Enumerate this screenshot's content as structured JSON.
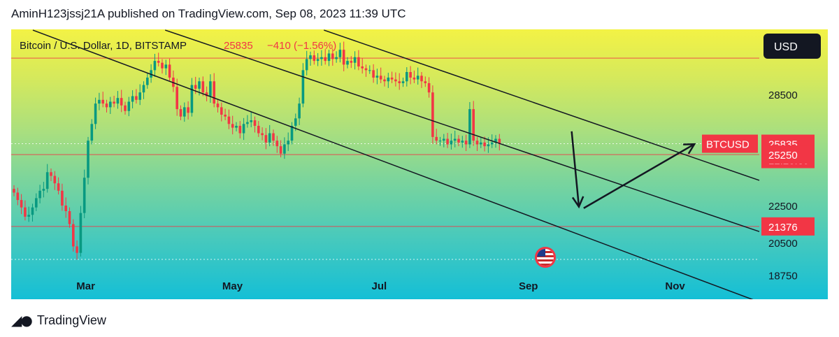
{
  "header": {
    "published": "AminH123jssj21A published on TradingView.com, Sep 08, 2023 11:39 UTC"
  },
  "legend": {
    "symbol": "Bitcoin / U.S. Dollar, 1D, BITSTAMP",
    "price": "25835",
    "change": "−410 (−1.56%)"
  },
  "currency_button": "USD",
  "footer": {
    "brand": "TradingView",
    "logo_icon": "tradingview-logo-icon"
  },
  "event_icon": "us-flag-icon",
  "colors": {
    "down": "#f23645",
    "up": "#089981",
    "line": "#131722"
  },
  "chart_data": {
    "type": "candlestick",
    "title": "Bitcoin / U.S. Dollar, 1D, BITSTAMP",
    "xlabels": [
      "Mar",
      "May",
      "Jul",
      "Sep",
      "Nov"
    ],
    "ylabels": [
      "28500",
      "22500",
      "20500",
      "18750"
    ],
    "price_tags": [
      {
        "label": "BTCUSD",
        "value": "25835",
        "countdown": "12:20:39"
      },
      {
        "value": "25250"
      },
      {
        "value": "21376"
      }
    ],
    "horizontal_levels": [
      30450,
      25250,
      21376,
      19600
    ],
    "closes": [
      23200,
      22800,
      22400,
      21900,
      22000,
      22400,
      22900,
      23300,
      23400,
      24300,
      24100,
      23700,
      23300,
      22500,
      22200,
      21500,
      20300,
      19950,
      22100,
      24000,
      26000,
      26900,
      28000,
      28200,
      28000,
      27800,
      28100,
      28000,
      28300,
      27900,
      27600,
      28100,
      28400,
      28200,
      28600,
      29000,
      29400,
      29800,
      30300,
      30200,
      29900,
      30100,
      29400,
      28900,
      27700,
      27300,
      27800,
      27500,
      29000,
      28800,
      29200,
      28600,
      28400,
      29200,
      28000,
      27800,
      27400,
      27300,
      26900,
      26700,
      26800,
      26400,
      26900,
      27000,
      27100,
      26800,
      26400,
      26300,
      25900,
      26400,
      26000,
      25700,
      25300,
      25800,
      26000,
      26800,
      27200,
      28000,
      29800,
      30400,
      30600,
      30300,
      30400,
      30500,
      30300,
      30700,
      30400,
      30500,
      30900,
      30100,
      30300,
      30200,
      30500,
      30000,
      29900,
      29800,
      29800,
      29400,
      29500,
      29300,
      29200,
      29400,
      29300,
      29200,
      29100,
      29200,
      29700,
      29400,
      29300,
      29500,
      29200,
      29100,
      28600,
      26200,
      26000,
      26000,
      26100,
      25800,
      26000,
      26100,
      25900,
      26000,
      25800,
      27700,
      26000,
      25800,
      25900,
      25700,
      25800,
      25900,
      26100,
      25835
    ],
    "channel_lines": [
      {
        "from": [
          "2023-02-07",
          31960
        ],
        "to": [
          "2023-12-06",
          17300
        ]
      },
      {
        "from": [
          "2023-04-03",
          31960
        ],
        "to": [
          "2023-12-06",
          21100
        ]
      },
      {
        "from": [
          "2023-06-08",
          31960
        ],
        "to": [
          "2023-12-06",
          23860
        ]
      }
    ],
    "arrows": [
      {
        "from": [
          "2023-09-19",
          26500
        ],
        "to": [
          "2023-09-22",
          22440
        ]
      },
      {
        "from": [
          "2023-09-24",
          22360
        ],
        "to": [
          "2023-11-09",
          25810
        ]
      }
    ],
    "xlim": [
      "2023-01-29",
      "2023-12-06"
    ],
    "ylim": [
      17450,
      32000
    ]
  }
}
